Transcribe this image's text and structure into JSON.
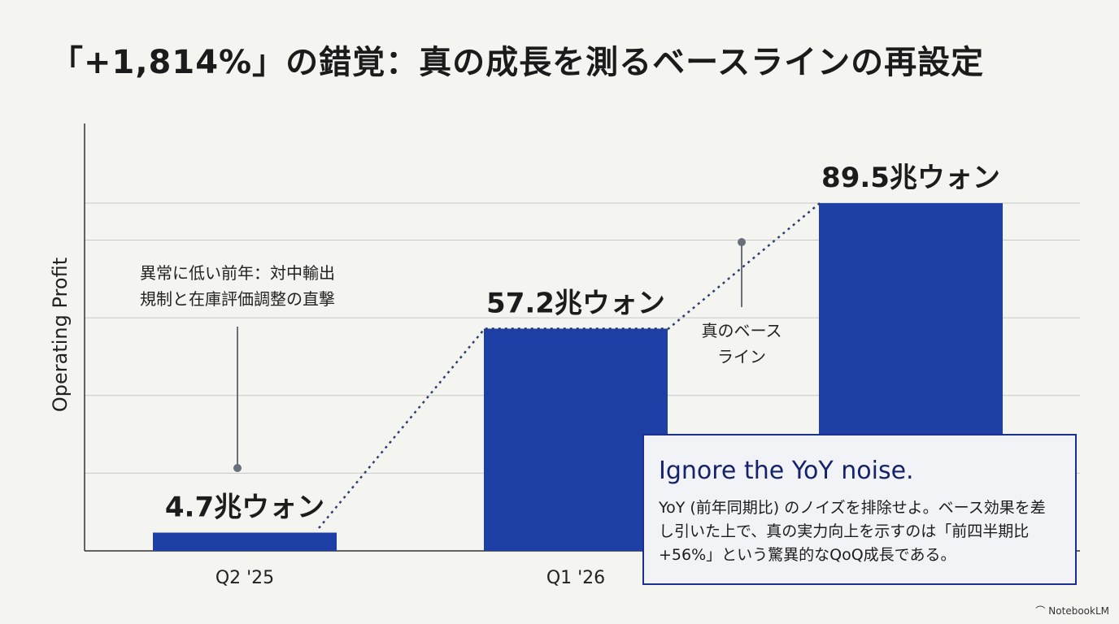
{
  "title": "「+1,814%」の錯覚：真の成長を測るベースラインの再設定",
  "chart_data": {
    "type": "bar",
    "categories": [
      "Q2 '25",
      "Q1 '26",
      ""
    ],
    "values": [
      4.7,
      57.2,
      89.5
    ],
    "data_labels": [
      "4.7兆ウォン",
      "57.2兆ウォン",
      "89.5兆ウォン"
    ],
    "ylabel": "Operating Profit",
    "ylim": [
      0,
      110
    ],
    "grid": true,
    "bar_color": "#1e3fa5",
    "trend_line": "dotted",
    "annotations": [
      {
        "lines": [
          "異常に低い前年：対中輸出",
          "規制と在庫評価調整の直撃"
        ]
      },
      {
        "lines": [
          "真のベース",
          "ライン"
        ]
      }
    ]
  },
  "callout": {
    "heading": "Ignore the YoY noise.",
    "body": "YoY (前年同期比) のノイズを排除せよ。ベース効果を差し引いた上で、真の実力向上を示すのは「前四半期比+56%」という驚異的なQoQ成長である。"
  },
  "brand": {
    "icon": "notebooklm-icon",
    "label": "NotebookLM"
  }
}
